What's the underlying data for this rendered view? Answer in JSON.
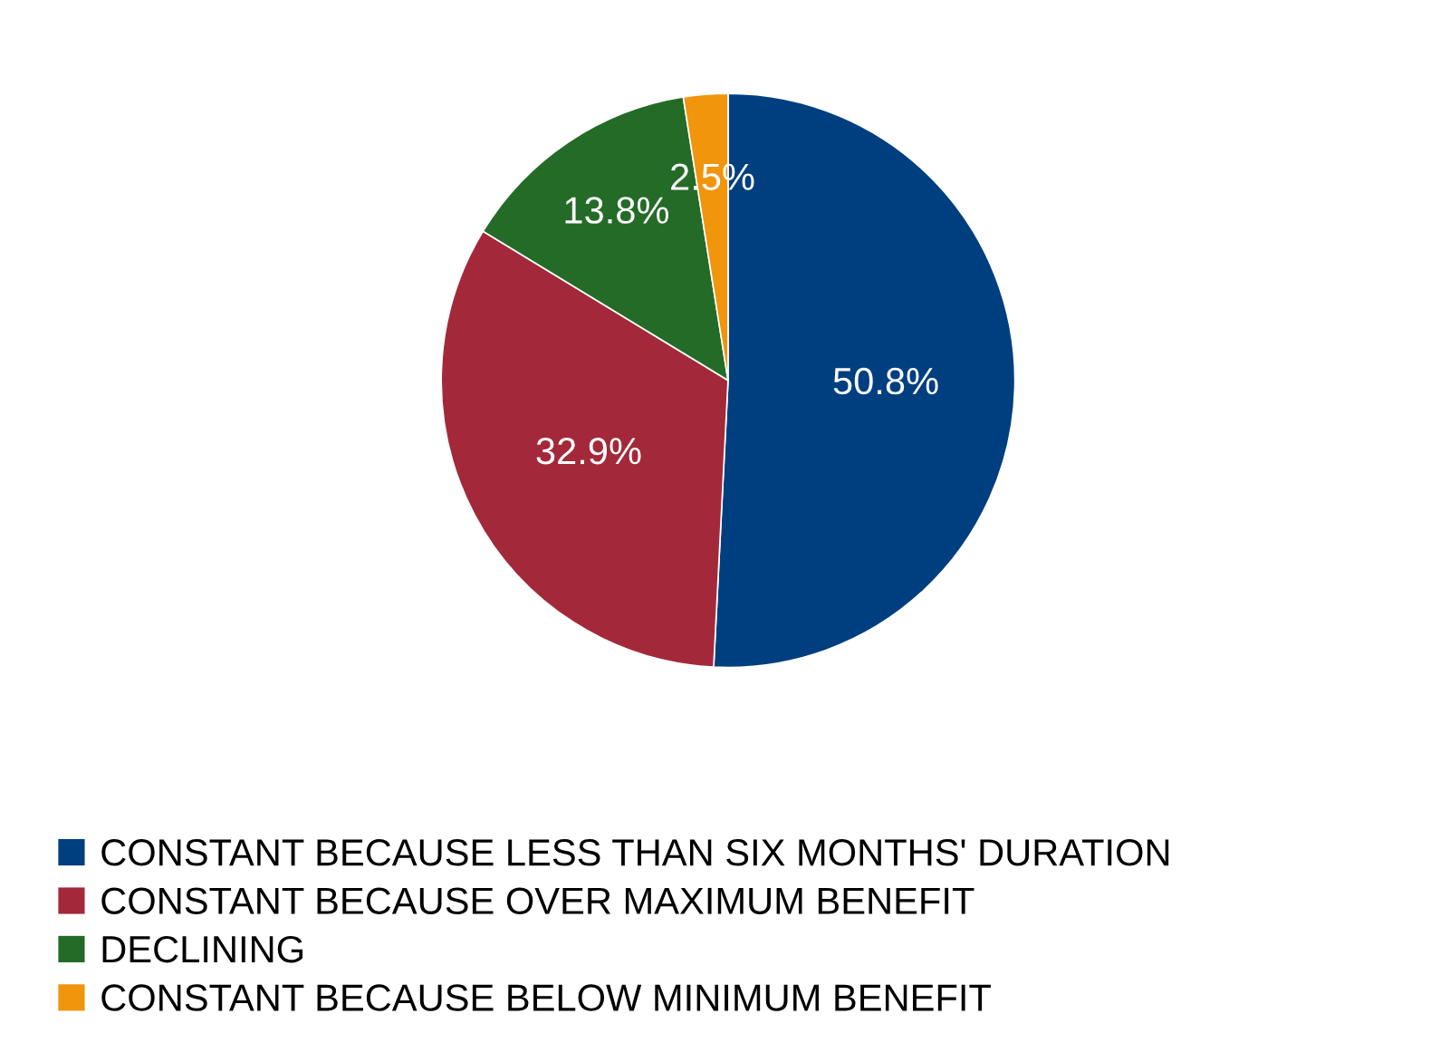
{
  "chart_data": {
    "type": "pie",
    "categories": [
      "CONSTANT BECAUSE LESS THAN SIX MONTHS' DURATION",
      "CONSTANT BECAUSE OVER MAXIMUM BENEFIT",
      "DECLINING",
      "CONSTANT BECAUSE BELOW MINIMUM BENEFIT"
    ],
    "values": [
      50.8,
      32.9,
      13.8,
      2.5
    ],
    "value_labels": [
      "50.8%",
      "32.9%",
      "13.8%",
      "2.5%"
    ],
    "colors": [
      "#003f7f",
      "#a3293a",
      "#246b28",
      "#f0950c"
    ],
    "legend": "bottom"
  }
}
